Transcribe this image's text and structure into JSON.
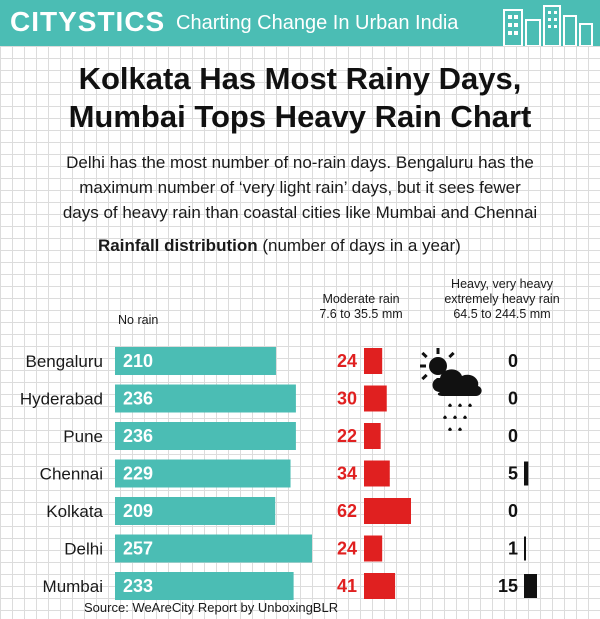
{
  "header": {
    "brand": "CITYSTICS",
    "tagline": "Charting Change In Urban India"
  },
  "headline_line1": "Kolkata Has Most Rainy Days,",
  "headline_line2": "Mumbai Tops Heavy Rain Chart",
  "subtitle_line1": "Delhi has the most number of no-rain days. Bengaluru has the",
  "subtitle_line2": "maximum number of ‘very light rain’ days, but it sees fewer",
  "subtitle_line3": "days of heavy rain than coastal cities like Mumbai and Chennai",
  "section_title_bold": "Rainfall distribution",
  "section_title_rest": "(number of days in a year)",
  "columns": {
    "no_rain": "No rain",
    "moderate_line1": "Moderate rain",
    "moderate_line2": "7.6 to 35.5 mm",
    "heavy_line1": "Heavy, very heavy",
    "heavy_line2": "extremely heavy rain",
    "heavy_line3": "64.5 to 244.5 mm"
  },
  "colors": {
    "header": "#4bbdb4",
    "no_rain_bar": "#4bbdb4",
    "moderate_bar": "#e02020",
    "moderate_text": "#e02020",
    "heavy_bar": "#111111"
  },
  "icon": "rain-cloud-sun-icon",
  "footer": "Source: WeAreCity Report by UnboxingBLR",
  "chart_data": {
    "type": "bar",
    "categories": [
      "Bengaluru",
      "Hyderabad",
      "Pune",
      "Chennai",
      "Kolkata",
      "Delhi",
      "Mumbai"
    ],
    "series": [
      {
        "name": "No rain",
        "values": [
          210,
          236,
          236,
          229,
          209,
          257,
          233
        ]
      },
      {
        "name": "Moderate rain 7.6 to 35.5 mm",
        "values": [
          24,
          30,
          22,
          34,
          62,
          24,
          41
        ]
      },
      {
        "name": "Heavy, very heavy extremely heavy rain 64.5 to 244.5 mm",
        "values": [
          0,
          0,
          0,
          5,
          0,
          1,
          15
        ]
      }
    ],
    "title": "Rainfall distribution",
    "ylabel": "(number of days in a year)"
  }
}
